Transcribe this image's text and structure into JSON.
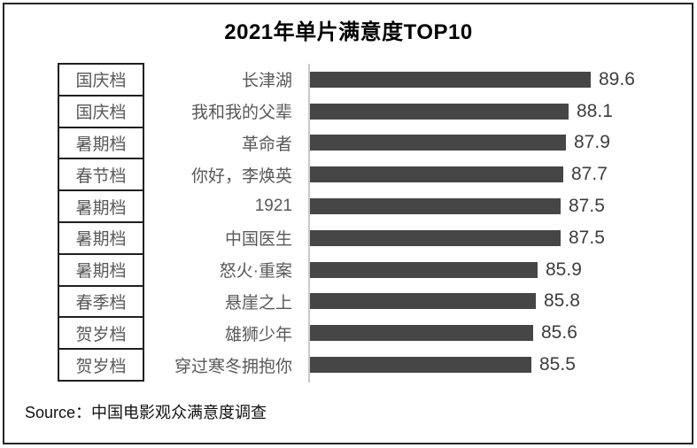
{
  "title": "2021年单片满意度TOP10",
  "source_label": "Source：中国电影观众满意度调查",
  "chart_data": {
    "type": "bar",
    "orientation": "horizontal",
    "title": "2021年单片满意度TOP10",
    "categories": [
      "长津湖",
      "我和我的父辈",
      "革命者",
      "你好，李焕英",
      "1921",
      "中国医生",
      "怒火·重案",
      "悬崖之上",
      "雄狮少年",
      "穿过寒冬拥抱你"
    ],
    "periods": [
      "国庆档",
      "国庆档",
      "暑期档",
      "春节档",
      "暑期档",
      "暑期档",
      "暑期档",
      "春季档",
      "贺岁档",
      "贺岁档"
    ],
    "values": [
      89.6,
      88.1,
      87.9,
      87.7,
      87.5,
      87.5,
      85.9,
      85.8,
      85.6,
      85.5
    ],
    "value_labels": [
      "89.6",
      "88.1",
      "87.9",
      "87.7",
      "87.5",
      "87.5",
      "85.9",
      "85.8",
      "85.6",
      "85.5"
    ],
    "xlim": [
      70,
      95
    ],
    "grid": false,
    "legend": false,
    "value_labels_shown": true,
    "source": "Source：中国电影观众满意度调查"
  },
  "colors": {
    "bar": "#464646",
    "label_text": "#595959",
    "value_text": "#3d3d3d",
    "box_border": "#1f1f1f",
    "axis_line": "#c9c9c9",
    "frame_border": "#262626",
    "title_text": "#000000",
    "background": "#ffffff"
  }
}
